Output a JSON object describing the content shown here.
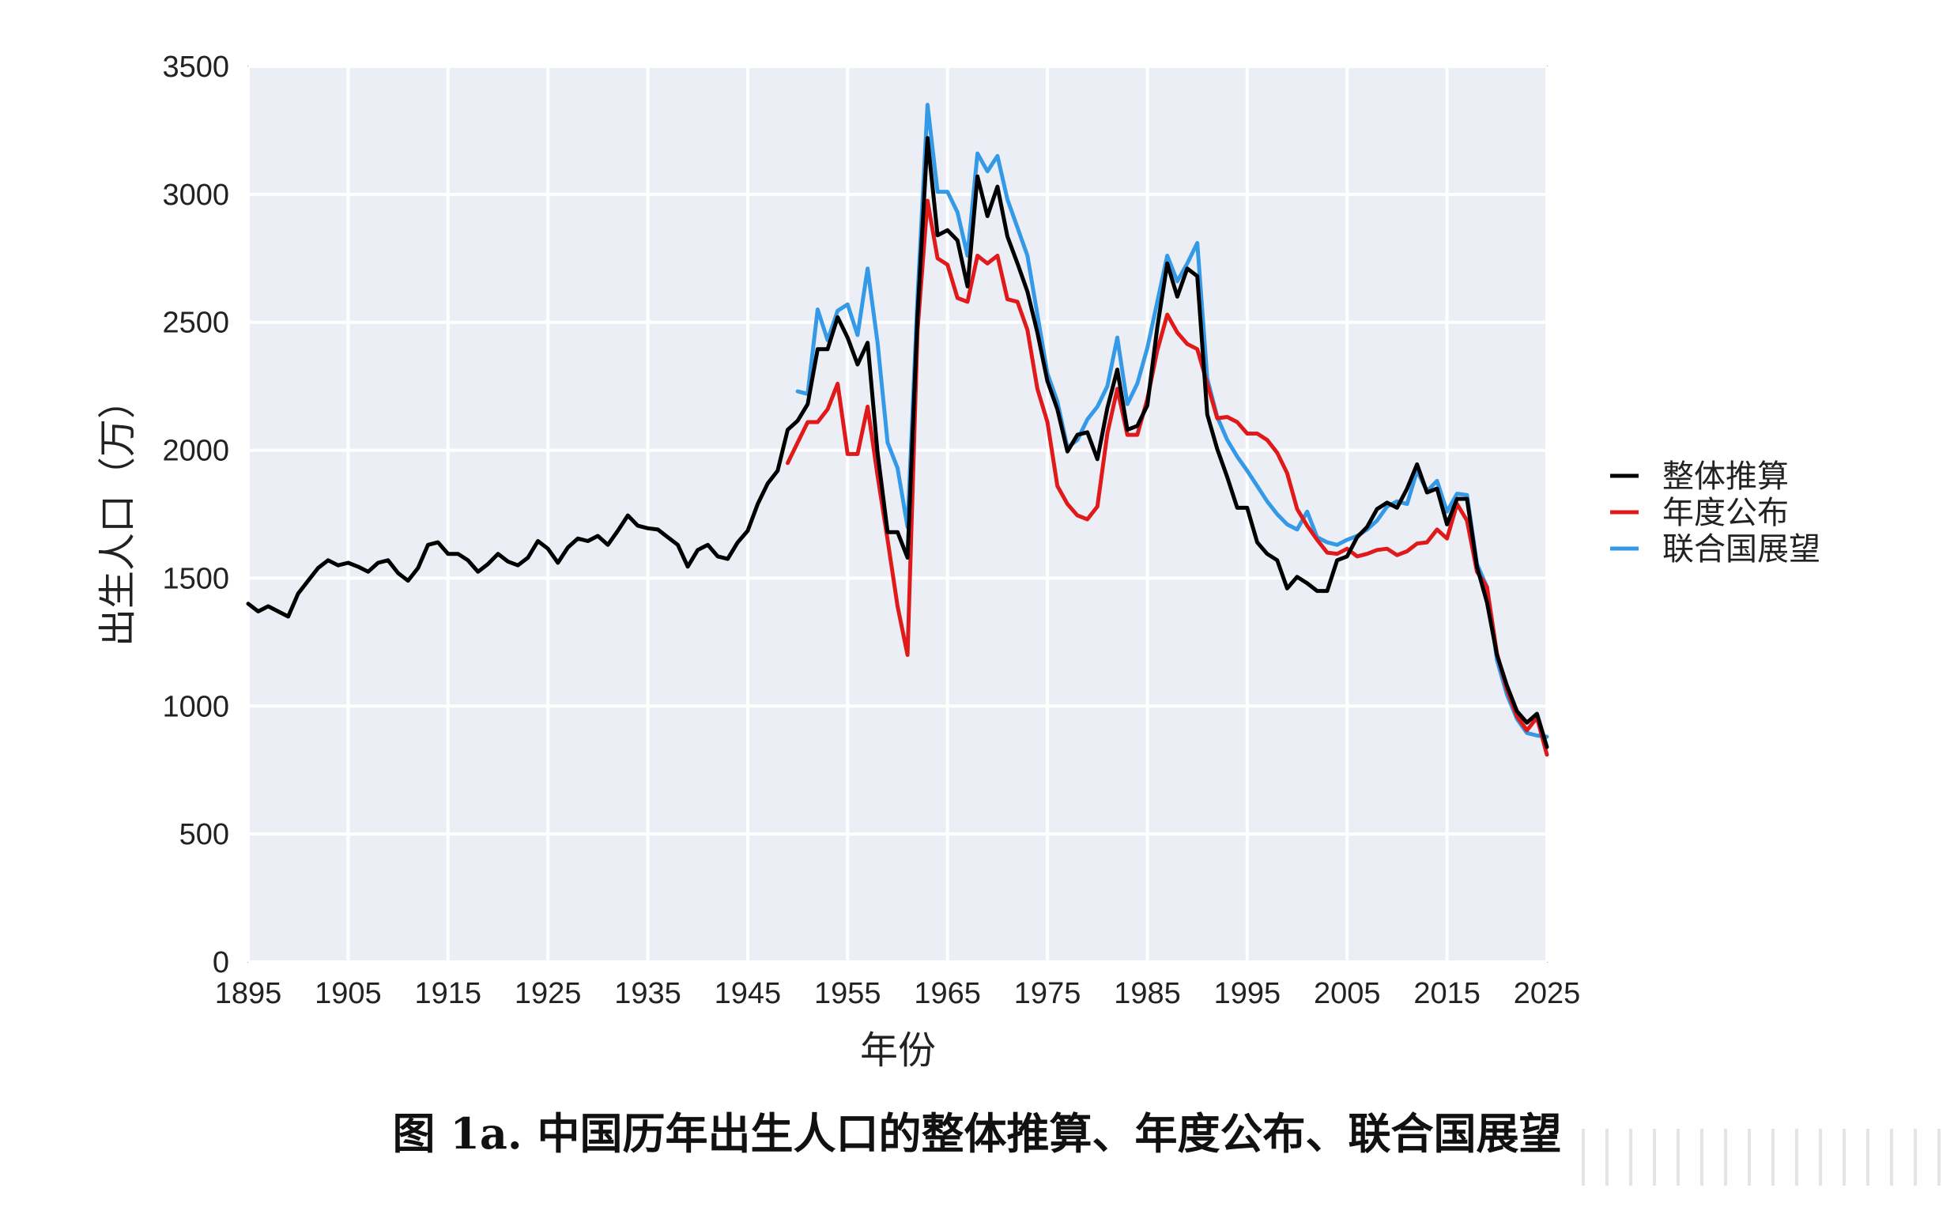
{
  "chart_data": {
    "type": "line",
    "title": "",
    "xlabel": "年份",
    "ylabel": "出生人口（万）",
    "xlim": [
      1895,
      2025
    ],
    "ylim": [
      0,
      3500
    ],
    "x_ticks": [
      "1895",
      "1905",
      "1915",
      "1925",
      "1935",
      "1945",
      "1955",
      "1965",
      "1975",
      "1985",
      "1995",
      "2005",
      "2015",
      "2025"
    ],
    "y_ticks": [
      "0",
      "500",
      "1000",
      "1500",
      "2000",
      "2500",
      "3000",
      "3500"
    ],
    "grid": true,
    "legend_position": "right",
    "series": [
      {
        "name": "整体推算",
        "color": "#000000",
        "points": [
          [
            1895,
            1400
          ],
          [
            1896,
            1370
          ],
          [
            1897,
            1390
          ],
          [
            1898,
            1370
          ],
          [
            1899,
            1350
          ],
          [
            1900,
            1440
          ],
          [
            1901,
            1490
          ],
          [
            1902,
            1540
          ],
          [
            1903,
            1570
          ],
          [
            1904,
            1550
          ],
          [
            1905,
            1560
          ],
          [
            1906,
            1545
          ],
          [
            1907,
            1525
          ],
          [
            1908,
            1560
          ],
          [
            1909,
            1570
          ],
          [
            1910,
            1520
          ],
          [
            1911,
            1490
          ],
          [
            1912,
            1540
          ],
          [
            1913,
            1630
          ],
          [
            1914,
            1640
          ],
          [
            1915,
            1595
          ],
          [
            1916,
            1595
          ],
          [
            1917,
            1570
          ],
          [
            1918,
            1525
          ],
          [
            1919,
            1555
          ],
          [
            1920,
            1595
          ],
          [
            1921,
            1565
          ],
          [
            1922,
            1550
          ],
          [
            1923,
            1580
          ],
          [
            1924,
            1645
          ],
          [
            1925,
            1615
          ],
          [
            1926,
            1560
          ],
          [
            1927,
            1620
          ],
          [
            1928,
            1655
          ],
          [
            1929,
            1645
          ],
          [
            1930,
            1665
          ],
          [
            1931,
            1630
          ],
          [
            1932,
            1685
          ],
          [
            1933,
            1745
          ],
          [
            1934,
            1705
          ],
          [
            1935,
            1695
          ],
          [
            1936,
            1690
          ],
          [
            1937,
            1660
          ],
          [
            1938,
            1630
          ],
          [
            1939,
            1545
          ],
          [
            1940,
            1610
          ],
          [
            1941,
            1630
          ],
          [
            1942,
            1585
          ],
          [
            1943,
            1575
          ],
          [
            1944,
            1640
          ],
          [
            1945,
            1685
          ],
          [
            1946,
            1790
          ],
          [
            1947,
            1870
          ],
          [
            1948,
            1920
          ],
          [
            1949,
            2080
          ],
          [
            1950,
            2115
          ],
          [
            1951,
            2180
          ],
          [
            1952,
            2395
          ],
          [
            1953,
            2395
          ],
          [
            1954,
            2520
          ],
          [
            1955,
            2440
          ],
          [
            1956,
            2335
          ],
          [
            1957,
            2420
          ],
          [
            1958,
            1990
          ],
          [
            1959,
            1680
          ],
          [
            1960,
            1680
          ],
          [
            1961,
            1580
          ],
          [
            1962,
            2530
          ],
          [
            1963,
            3220
          ],
          [
            1964,
            2840
          ],
          [
            1965,
            2860
          ],
          [
            1966,
            2820
          ],
          [
            1967,
            2640
          ],
          [
            1968,
            3070
          ],
          [
            1969,
            2915
          ],
          [
            1970,
            3030
          ],
          [
            1971,
            2835
          ],
          [
            1972,
            2730
          ],
          [
            1973,
            2620
          ],
          [
            1974,
            2460
          ],
          [
            1975,
            2270
          ],
          [
            1976,
            2160
          ],
          [
            1977,
            1995
          ],
          [
            1978,
            2060
          ],
          [
            1979,
            2070
          ],
          [
            1980,
            1965
          ],
          [
            1981,
            2165
          ],
          [
            1982,
            2315
          ],
          [
            1983,
            2080
          ],
          [
            1984,
            2095
          ],
          [
            1985,
            2175
          ],
          [
            1986,
            2480
          ],
          [
            1987,
            2730
          ],
          [
            1988,
            2600
          ],
          [
            1989,
            2710
          ],
          [
            1990,
            2680
          ],
          [
            1991,
            2140
          ],
          [
            1992,
            2005
          ],
          [
            1993,
            1895
          ],
          [
            1994,
            1775
          ],
          [
            1995,
            1775
          ],
          [
            1996,
            1640
          ],
          [
            1997,
            1595
          ],
          [
            1998,
            1570
          ],
          [
            1999,
            1460
          ],
          [
            2000,
            1505
          ],
          [
            2001,
            1480
          ],
          [
            2002,
            1450
          ],
          [
            2003,
            1450
          ],
          [
            2004,
            1570
          ],
          [
            2005,
            1585
          ],
          [
            2006,
            1660
          ],
          [
            2007,
            1700
          ],
          [
            2008,
            1770
          ],
          [
            2009,
            1795
          ],
          [
            2010,
            1775
          ],
          [
            2011,
            1850
          ],
          [
            2012,
            1945
          ],
          [
            2013,
            1835
          ],
          [
            2014,
            1850
          ],
          [
            2015,
            1710
          ],
          [
            2016,
            1810
          ],
          [
            2017,
            1810
          ],
          [
            2018,
            1545
          ],
          [
            2019,
            1405
          ],
          [
            2020,
            1200
          ],
          [
            2021,
            1080
          ],
          [
            2022,
            980
          ],
          [
            2023,
            935
          ],
          [
            2024,
            970
          ],
          [
            2025,
            840
          ]
        ]
      },
      {
        "name": "年度公布",
        "color": "#e0191b",
        "points": [
          [
            1949,
            1950
          ],
          [
            1950,
            2030
          ],
          [
            1951,
            2110
          ],
          [
            1952,
            2110
          ],
          [
            1953,
            2160
          ],
          [
            1954,
            2260
          ],
          [
            1955,
            1985
          ],
          [
            1956,
            1985
          ],
          [
            1957,
            2170
          ],
          [
            1958,
            1900
          ],
          [
            1959,
            1650
          ],
          [
            1960,
            1390
          ],
          [
            1961,
            1200
          ],
          [
            1962,
            2470
          ],
          [
            1963,
            2975
          ],
          [
            1964,
            2750
          ],
          [
            1965,
            2725
          ],
          [
            1966,
            2595
          ],
          [
            1967,
            2580
          ],
          [
            1968,
            2760
          ],
          [
            1969,
            2730
          ],
          [
            1970,
            2760
          ],
          [
            1971,
            2590
          ],
          [
            1972,
            2580
          ],
          [
            1973,
            2470
          ],
          [
            1974,
            2240
          ],
          [
            1975,
            2110
          ],
          [
            1976,
            1860
          ],
          [
            1977,
            1790
          ],
          [
            1978,
            1745
          ],
          [
            1979,
            1730
          ],
          [
            1980,
            1780
          ],
          [
            1981,
            2065
          ],
          [
            1982,
            2240
          ],
          [
            1983,
            2060
          ],
          [
            1984,
            2060
          ],
          [
            1985,
            2200
          ],
          [
            1986,
            2390
          ],
          [
            1987,
            2530
          ],
          [
            1988,
            2460
          ],
          [
            1989,
            2415
          ],
          [
            1990,
            2395
          ],
          [
            1991,
            2260
          ],
          [
            1992,
            2125
          ],
          [
            1993,
            2130
          ],
          [
            1994,
            2110
          ],
          [
            1995,
            2065
          ],
          [
            1996,
            2065
          ],
          [
            1997,
            2040
          ],
          [
            1998,
            1990
          ],
          [
            1999,
            1910
          ],
          [
            2000,
            1770
          ],
          [
            2001,
            1705
          ],
          [
            2002,
            1650
          ],
          [
            2003,
            1600
          ],
          [
            2004,
            1595
          ],
          [
            2005,
            1615
          ],
          [
            2006,
            1585
          ],
          [
            2007,
            1595
          ],
          [
            2008,
            1610
          ],
          [
            2009,
            1615
          ],
          [
            2010,
            1590
          ],
          [
            2011,
            1605
          ],
          [
            2012,
            1635
          ],
          [
            2013,
            1640
          ],
          [
            2014,
            1690
          ],
          [
            2015,
            1655
          ],
          [
            2016,
            1790
          ],
          [
            2017,
            1725
          ],
          [
            2018,
            1525
          ],
          [
            2019,
            1465
          ],
          [
            2020,
            1205
          ],
          [
            2021,
            1065
          ],
          [
            2022,
            960
          ],
          [
            2023,
            905
          ],
          [
            2024,
            955
          ],
          [
            2025,
            810
          ]
        ]
      },
      {
        "name": "联合国展望",
        "color": "#3499e6",
        "points": [
          [
            1950,
            2230
          ],
          [
            1951,
            2220
          ],
          [
            1952,
            2550
          ],
          [
            1953,
            2430
          ],
          [
            1954,
            2545
          ],
          [
            1955,
            2570
          ],
          [
            1956,
            2450
          ],
          [
            1957,
            2710
          ],
          [
            1958,
            2420
          ],
          [
            1959,
            2030
          ],
          [
            1960,
            1930
          ],
          [
            1961,
            1700
          ],
          [
            1962,
            2600
          ],
          [
            1963,
            3350
          ],
          [
            1964,
            3010
          ],
          [
            1965,
            3010
          ],
          [
            1966,
            2930
          ],
          [
            1967,
            2760
          ],
          [
            1968,
            3160
          ],
          [
            1969,
            3090
          ],
          [
            1970,
            3150
          ],
          [
            1971,
            2980
          ],
          [
            1972,
            2870
          ],
          [
            1973,
            2760
          ],
          [
            1974,
            2530
          ],
          [
            1975,
            2300
          ],
          [
            1976,
            2190
          ],
          [
            1977,
            2010
          ],
          [
            1978,
            2040
          ],
          [
            1979,
            2120
          ],
          [
            1980,
            2170
          ],
          [
            1981,
            2250
          ],
          [
            1982,
            2440
          ],
          [
            1983,
            2180
          ],
          [
            1984,
            2260
          ],
          [
            1985,
            2400
          ],
          [
            1986,
            2580
          ],
          [
            1987,
            2760
          ],
          [
            1988,
            2660
          ],
          [
            1989,
            2730
          ],
          [
            1990,
            2810
          ],
          [
            1991,
            2280
          ],
          [
            1992,
            2130
          ],
          [
            1993,
            2040
          ],
          [
            1994,
            1975
          ],
          [
            1995,
            1920
          ],
          [
            1996,
            1860
          ],
          [
            1997,
            1800
          ],
          [
            1998,
            1750
          ],
          [
            1999,
            1710
          ],
          [
            2000,
            1690
          ],
          [
            2001,
            1760
          ],
          [
            2002,
            1660
          ],
          [
            2003,
            1640
          ],
          [
            2004,
            1630
          ],
          [
            2005,
            1650
          ],
          [
            2006,
            1665
          ],
          [
            2007,
            1690
          ],
          [
            2008,
            1725
          ],
          [
            2009,
            1780
          ],
          [
            2010,
            1800
          ],
          [
            2011,
            1790
          ],
          [
            2012,
            1920
          ],
          [
            2013,
            1840
          ],
          [
            2014,
            1880
          ],
          [
            2015,
            1760
          ],
          [
            2016,
            1830
          ],
          [
            2017,
            1825
          ],
          [
            2018,
            1555
          ],
          [
            2019,
            1465
          ],
          [
            2020,
            1180
          ],
          [
            2021,
            1045
          ],
          [
            2022,
            950
          ],
          [
            2023,
            895
          ],
          [
            2024,
            885
          ],
          [
            2025,
            880
          ]
        ]
      }
    ]
  },
  "caption": "图 1a.  中国历年出生人口的整体推算、年度公布、联合国展望"
}
